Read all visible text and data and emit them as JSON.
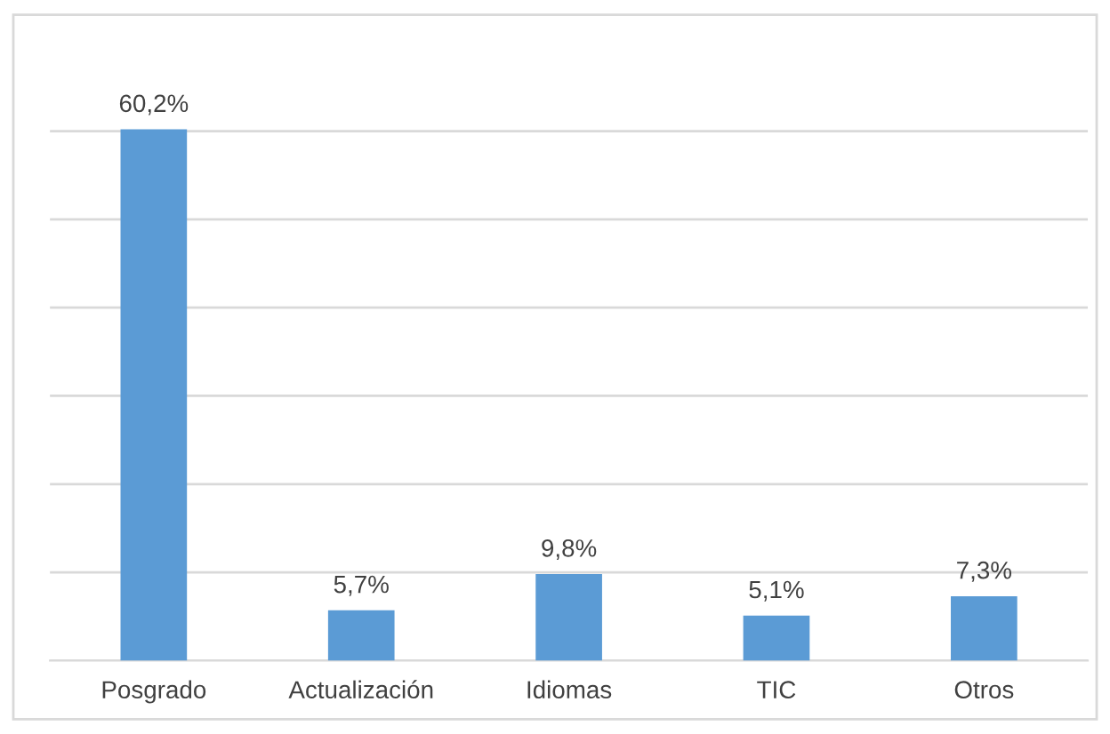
{
  "chart_data": {
    "type": "bar",
    "categories": [
      "Posgrado",
      "Actualización",
      "Idiomas",
      "TIC",
      "Otros"
    ],
    "values": [
      60.2,
      5.7,
      9.8,
      5.1,
      7.3
    ],
    "value_labels": [
      "60,2%",
      "5,7%",
      "9,8%",
      "5,1%",
      "7,3%"
    ],
    "color": "#5b9bd5",
    "yticks": [
      {
        "value": 0,
        "label": null
      },
      {
        "value": 10,
        "label": null
      },
      {
        "value": 20,
        "label": null
      },
      {
        "value": 30,
        "label": null
      },
      {
        "value": 40,
        "label": null
      },
      {
        "value": 50,
        "label": null
      },
      {
        "value": 60,
        "label": null
      }
    ],
    "grid": "y",
    "tick_labels": "x",
    "legend": false
  }
}
